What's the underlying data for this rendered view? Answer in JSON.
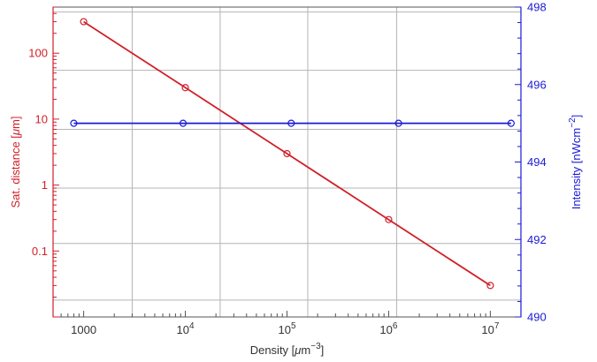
{
  "chart_data": {
    "type": "line",
    "x": {
      "label_main": "Density [",
      "label_mu": "μ",
      "label_unit": "m",
      "label_sup": "−3",
      "label_end": "]",
      "scale": "log",
      "lim": [
        500,
        20000000
      ],
      "ticks": [
        {
          "value": 1000,
          "mantissa": "1000",
          "sup": ""
        },
        {
          "value": 10000,
          "mantissa": "10",
          "sup": "4"
        },
        {
          "value": 100000,
          "mantissa": "10",
          "sup": "5"
        },
        {
          "value": 1000000,
          "mantissa": "10",
          "sup": "6"
        },
        {
          "value": 10000000,
          "mantissa": "10",
          "sup": "7"
        }
      ]
    },
    "y_left": {
      "label_main": "Sat. distance [",
      "label_mu": "μ",
      "label_unit": "m]",
      "scale": "log",
      "lim": [
        0.01,
        500
      ],
      "color": "#d0202a",
      "ticks": [
        {
          "value": 0.1,
          "label": "0.1"
        },
        {
          "value": 1,
          "label": "1"
        },
        {
          "value": 10,
          "label": "10"
        },
        {
          "value": 100,
          "label": "100"
        }
      ]
    },
    "y_right": {
      "label_main": "Intensity [nWcm",
      "label_sup": "−2",
      "label_end": "]",
      "scale": "linear",
      "lim": [
        490,
        498
      ],
      "color": "#1a1ad6",
      "ticks": [
        {
          "value": 490,
          "label": "490"
        },
        {
          "value": 492,
          "label": "492"
        },
        {
          "value": 494,
          "label": "494"
        },
        {
          "value": 496,
          "label": "496"
        },
        {
          "value": 498,
          "label": "498"
        }
      ]
    },
    "series": [
      {
        "axis": "left",
        "color": "#d0202a",
        "x": [
          1000,
          10000,
          100000,
          1000000,
          10000000
        ],
        "y": [
          300,
          30,
          3,
          0.3,
          0.03
        ]
      },
      {
        "axis": "right",
        "color": "#1a1ad6",
        "x": [
          800,
          9500,
          110000,
          1250000,
          16000000
        ],
        "y": [
          495,
          495,
          495,
          495,
          495
        ]
      }
    ],
    "grid": {
      "color": "#b4b4b4",
      "x_lines": [
        3000,
        22000,
        160000,
        1200000
      ],
      "y_lines_left": [
        0.018,
        0.13,
        0.9,
        7,
        55,
        420
      ]
    }
  }
}
